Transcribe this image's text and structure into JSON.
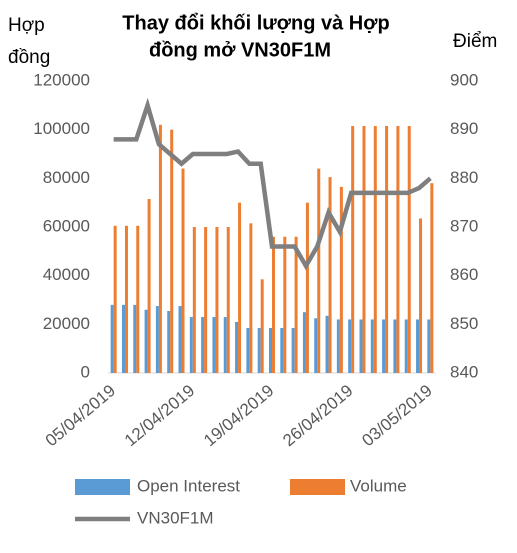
{
  "chart_data": {
    "type": "bar_line",
    "title": [
      "Thay đổi khối lượng và Hợp",
      "đồng mở VN30F1M"
    ],
    "ylabel": [
      "Hợp",
      "đồng"
    ],
    "y2label": "Điểm",
    "categories": [
      "05/04/2019",
      null,
      null,
      null,
      null,
      null,
      null,
      "12/04/2019",
      null,
      null,
      null,
      null,
      null,
      null,
      "19/04/2019",
      null,
      null,
      null,
      null,
      null,
      null,
      "26/04/2019",
      null,
      null,
      null,
      null,
      null,
      null,
      "03/05/2019"
    ],
    "series": [
      {
        "name": "Open Interest",
        "color": "#5b9bd5",
        "kind": "bar",
        "values": [
          28000,
          28000,
          28000,
          26000,
          27500,
          25500,
          27500,
          23000,
          23000,
          23000,
          23000,
          21000,
          18500,
          18500,
          18500,
          18500,
          18500,
          25000,
          22500,
          23500,
          22000,
          22000,
          22000,
          22000,
          22000,
          22000,
          22000,
          22000,
          22000
        ]
      },
      {
        "name": "Volume",
        "color": "#ed7d31",
        "kind": "bar",
        "values": [
          60500,
          60500,
          60500,
          71500,
          102000,
          100000,
          84000,
          60000,
          60000,
          60000,
          60000,
          70000,
          61500,
          38500,
          56000,
          56000,
          56000,
          70000,
          84000,
          80500,
          76500,
          101500,
          101500,
          101500,
          101500,
          101500,
          101500,
          63500,
          78000
        ]
      },
      {
        "name": "VN30F1M",
        "color": "#7f7f7f",
        "kind": "line",
        "axis": "y2",
        "values": [
          888,
          888,
          888,
          895,
          887,
          885,
          883,
          885,
          885,
          885,
          885,
          885.5,
          883,
          883,
          866,
          866,
          866,
          862,
          866,
          873,
          869,
          877,
          877,
          877,
          877,
          877,
          877,
          878,
          880
        ]
      }
    ],
    "ylim": [
      0,
      120000
    ],
    "yticks": [
      0,
      20000,
      40000,
      60000,
      80000,
      100000,
      120000
    ],
    "y2lim": [
      840,
      900
    ],
    "y2ticks": [
      840,
      850,
      860,
      870,
      880,
      890,
      900
    ],
    "legend": "bottom"
  }
}
